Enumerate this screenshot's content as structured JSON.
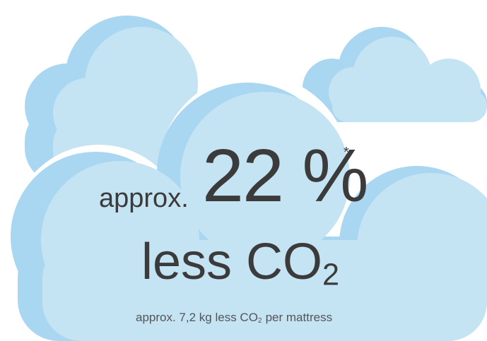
{
  "headline": {
    "prefix": "approx.",
    "figure": "22 %",
    "footnote_mark": "*"
  },
  "subline": {
    "text": "less CO",
    "subscript": "2"
  },
  "caption": {
    "before": "approx. 7,2 kg less CO",
    "subscript": "2",
    "after": "per mattress"
  }
}
